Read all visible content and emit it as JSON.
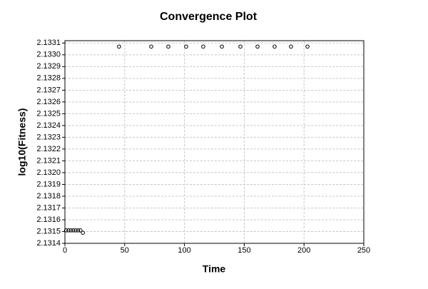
{
  "chart_data": {
    "type": "scatter",
    "title": "Convergence Plot",
    "x_label": "Time",
    "y_label": "log10(Fitness)",
    "series": [
      {
        "color": "#000000",
        "x": [
          1,
          3,
          5,
          7,
          9,
          11,
          13,
          15,
          45.3,
          72.2,
          86.5,
          101.4,
          115.7,
          131.3,
          146.8,
          161.1,
          175.4,
          189.1,
          202.9
        ],
        "values": [
          2.13151,
          2.13151,
          2.13151,
          2.13151,
          2.13151,
          2.13151,
          2.13151,
          2.13149,
          2.13307,
          2.13307,
          2.13307,
          2.13307,
          2.13307,
          2.13307,
          2.13307,
          2.13307,
          2.13307,
          2.13307,
          2.13307
        ]
      }
    ],
    "xlim": [
      0,
      250
    ],
    "xticks": [
      0,
      50,
      100,
      150,
      200,
      250
    ],
    "ylim": [
      2.1314,
      2.13312
    ],
    "yticks": [
      2.1314,
      2.1315,
      2.1316,
      2.1317,
      2.1318,
      2.1319,
      {
        "value": 2.132,
        "label": "2.1320"
      },
      2.1321,
      2.1322,
      2.1323,
      2.1324,
      2.1325,
      2.1326,
      2.1327,
      2.1328,
      2.1329,
      {
        "value": 2.133,
        "label": "2.1330"
      },
      2.1331
    ],
    "grid": true
  }
}
